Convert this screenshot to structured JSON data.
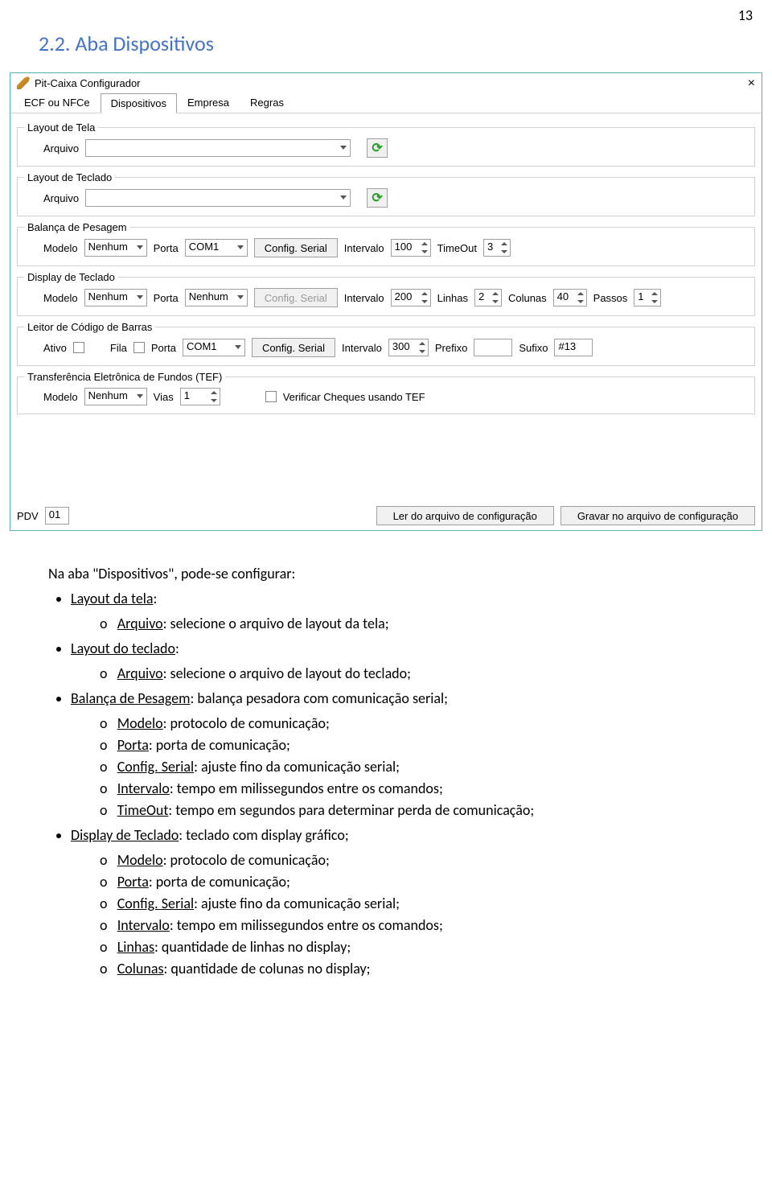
{
  "pageNumber": "13",
  "sectionHeading": "2.2.   Aba Dispositivos",
  "window": {
    "title": "Pit-Caixa Configurador",
    "tabs": [
      "ECF ou NFCe",
      "Dispositivos",
      "Empresa",
      "Regras"
    ],
    "activeTab": 1,
    "layoutTela": {
      "legend": "Layout de Tela",
      "label": "Arquivo"
    },
    "layoutTeclado": {
      "legend": "Layout de Teclado",
      "label": "Arquivo"
    },
    "balanca": {
      "legend": "Balança de Pesagem",
      "modelo": "Nenhum",
      "porta": "COM1",
      "configBtn": "Config. Serial",
      "intervalo": "100",
      "timeout": "3"
    },
    "display": {
      "legend": "Display de Teclado",
      "modelo": "Nenhum",
      "porta": "Nenhum",
      "configBtn": "Config. Serial",
      "intervalo": "200",
      "linhas": "2",
      "colunas": "40",
      "passos": "1"
    },
    "leitor": {
      "legend": "Leitor de Código de Barras",
      "porta": "COM1",
      "configBtn": "Config. Serial",
      "intervalo": "300",
      "sufixo": "#13"
    },
    "tef": {
      "legend": "Transferência Eletrônica de Fundos (TEF)",
      "modelo": "Nenhum",
      "vias": "1",
      "checkLabel": "Verificar Cheques usando TEF"
    },
    "labels": {
      "modelo": "Modelo",
      "porta": "Porta",
      "intervalo": "Intervalo",
      "timeout": "TimeOut",
      "linhas": "Linhas",
      "colunas": "Colunas",
      "passos": "Passos",
      "ativo": "Ativo",
      "fila": "Fila",
      "prefixo": "Prefixo",
      "sufixo": "Sufixo",
      "vias": "Vias"
    },
    "footer": {
      "pdvLabel": "PDV",
      "pdvValue": "01",
      "lerBtn": "Ler do arquivo de configuração",
      "gravarBtn": "Gravar no arquivo de configuração"
    }
  },
  "bodyText": {
    "intro": "Na aba \"Dispositivos\", pode-se configurar:",
    "items": [
      {
        "title": "Layout da tela:",
        "sub": [
          {
            "k": "Arquivo",
            "v": ": selecione o arquivo de layout da tela;"
          }
        ]
      },
      {
        "title": "Layout do teclado:",
        "sub": [
          {
            "k": "Arquivo",
            "v": ": selecione o arquivo de layout do teclado;"
          }
        ]
      },
      {
        "title": "Balança de Pesagem",
        "after": ": balança pesadora com comunicação serial;",
        "sub": [
          {
            "k": "Modelo",
            "v": ": protocolo de comunicação;"
          },
          {
            "k": "Porta",
            "v": ": porta de comunicação;"
          },
          {
            "k": "Config. Serial",
            "v": ": ajuste fino da comunicação serial;"
          },
          {
            "k": "Intervalo",
            "v": ": tempo em milissegundos entre os comandos;"
          },
          {
            "k": "TimeOut",
            "v": ":  tempo em segundos para determinar perda de comunicação;"
          }
        ]
      },
      {
        "title": "Display de Teclado",
        "after": ": teclado com display gráfico;",
        "sub": [
          {
            "k": "Modelo",
            "v": ": protocolo de comunicação;"
          },
          {
            "k": "Porta",
            "v": ": porta de comunicação;"
          },
          {
            "k": "Config. Serial",
            "v": ": ajuste fino da comunicação serial;"
          },
          {
            "k": "Intervalo",
            "v": ": tempo em milissegundos entre os comandos;"
          },
          {
            "k": "Linhas",
            "v": ": quantidade de linhas no display;"
          },
          {
            "k": "Colunas",
            "v": ": quantidade de colunas no display;"
          }
        ]
      }
    ]
  }
}
